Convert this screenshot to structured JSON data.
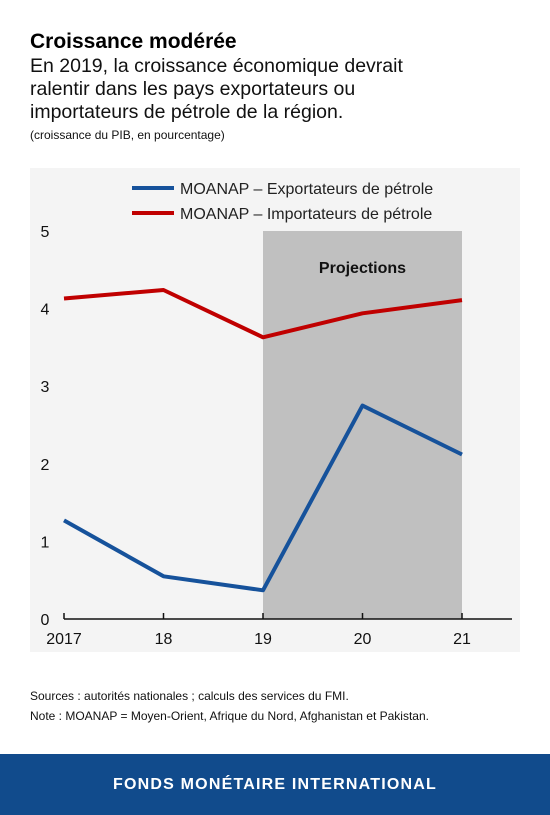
{
  "header": {
    "title": "Croissance modérée",
    "subtitle_lines": [
      "En 2019, la croissance économique devrait",
      "ralentir dans les pays exportateurs ou",
      "importateurs de pétrole de la région."
    ],
    "unit": "(croissance du PIB, en pourcentage)"
  },
  "chart_data": {
    "type": "line",
    "x": [
      "2017",
      "18",
      "19",
      "20",
      "21"
    ],
    "ylim": [
      0,
      5
    ],
    "yticks": [
      0,
      1,
      2,
      3,
      4,
      5
    ],
    "grid": false,
    "legend_position": "top-left",
    "shaded_region": {
      "from": "19",
      "to": "21",
      "label": "Projections",
      "color": "#c0c0c0"
    },
    "series": [
      {
        "name": "MOANAP – Exportateurs de pétrole",
        "color": "#16529b",
        "values": [
          1.27,
          0.55,
          0.37,
          2.75,
          2.12
        ]
      },
      {
        "name": "MOANAP – Importateurs de pétrole",
        "color": "#c00000",
        "values": [
          4.13,
          4.24,
          3.63,
          3.94,
          4.11
        ]
      }
    ]
  },
  "notes": {
    "sources": "Sources : autorités nationales ; calculs des services du FMI.",
    "note": "Note : MOANAP = Moyen-Orient, Afrique du Nord, Afghanistan et Pakistan."
  },
  "footer": {
    "label": "FONDS MONÉTAIRE INTERNATIONAL"
  }
}
